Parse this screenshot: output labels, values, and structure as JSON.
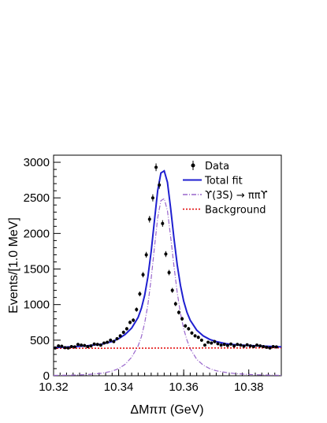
{
  "chart_data": {
    "type": "line",
    "xlabel": "ΔMππ (GeV)",
    "ylabel": "Events/[1.0 MeV]",
    "xlim": [
      10.32,
      10.39
    ],
    "ylim": [
      0,
      3100
    ],
    "x_ticks": [
      "10.32",
      "10.34",
      "10.36",
      "10.38"
    ],
    "y_ticks": [
      "0",
      "500",
      "1000",
      "1500",
      "2000",
      "2500",
      "3000"
    ],
    "legend_position": "top-right",
    "legend": [
      {
        "label": "Data",
        "style": "marker",
        "color": "#000000"
      },
      {
        "label": "Total fit",
        "style": "solid",
        "color": "#1f1fd0"
      },
      {
        "label": "ϒ(3S) → ππϒ",
        "style": "dash-dot",
        "color": "#9966cc"
      },
      {
        "label": "Background",
        "style": "dotted",
        "color": "#e00000"
      }
    ],
    "series": [
      {
        "name": "Data",
        "x": [
          10.3205,
          10.3215,
          10.3225,
          10.3235,
          10.3245,
          10.3255,
          10.3265,
          10.3275,
          10.3285,
          10.3295,
          10.3305,
          10.3315,
          10.3325,
          10.3335,
          10.3345,
          10.3355,
          10.3365,
          10.3375,
          10.3385,
          10.3395,
          10.3405,
          10.3415,
          10.3425,
          10.3435,
          10.3445,
          10.3455,
          10.3465,
          10.3475,
          10.3485,
          10.3495,
          10.3505,
          10.3515,
          10.3525,
          10.3535,
          10.3545,
          10.3555,
          10.3565,
          10.3575,
          10.3585,
          10.3595,
          10.3605,
          10.3615,
          10.3625,
          10.3635,
          10.3645,
          10.3655,
          10.3665,
          10.3675,
          10.3685,
          10.3695,
          10.3705,
          10.3715,
          10.3725,
          10.3735,
          10.3745,
          10.3755,
          10.3765,
          10.3775,
          10.3785,
          10.3795,
          10.3805,
          10.3815,
          10.3825,
          10.3835,
          10.3845,
          10.3855,
          10.3865,
          10.3875,
          10.3885
        ],
        "y": [
          390,
          420,
          415,
          395,
          390,
          410,
          405,
          440,
          430,
          425,
          410,
          420,
          445,
          440,
          430,
          460,
          470,
          500,
          480,
          520,
          560,
          610,
          660,
          750,
          780,
          930,
          1150,
          1420,
          1700,
          2200,
          2500,
          2930,
          2680,
          2140,
          1710,
          1450,
          1200,
          1010,
          890,
          800,
          700,
          660,
          600,
          560,
          540,
          500,
          430,
          470,
          460,
          480,
          450,
          430,
          440,
          425,
          445,
          420,
          440,
          430,
          415,
          435,
          420,
          410,
          430,
          420,
          410,
          400,
          390,
          410,
          405
        ]
      },
      {
        "name": "Total fit",
        "x": [
          10.32,
          10.325,
          10.33,
          10.335,
          10.338,
          10.34,
          10.342,
          10.344,
          10.346,
          10.347,
          10.348,
          10.349,
          10.35,
          10.351,
          10.352,
          10.353,
          10.354,
          10.355,
          10.356,
          10.357,
          10.358,
          10.359,
          10.36,
          10.361,
          10.362,
          10.364,
          10.366,
          10.368,
          10.37,
          10.373,
          10.376,
          10.38,
          10.385,
          10.39
        ],
        "y": [
          395,
          405,
          420,
          445,
          480,
          520,
          580,
          670,
          820,
          950,
          1130,
          1390,
          1750,
          2180,
          2600,
          2850,
          2880,
          2720,
          2350,
          1930,
          1560,
          1270,
          1050,
          890,
          780,
          640,
          560,
          510,
          480,
          450,
          435,
          425,
          415,
          405
        ]
      },
      {
        "name": "ϒ(3S) → ππϒ",
        "x": [
          10.32,
          10.325,
          10.33,
          10.335,
          10.338,
          10.34,
          10.342,
          10.344,
          10.346,
          10.347,
          10.348,
          10.349,
          10.35,
          10.351,
          10.352,
          10.353,
          10.354,
          10.355,
          10.356,
          10.357,
          10.358,
          10.359,
          10.36,
          10.361,
          10.362,
          10.364,
          10.366,
          10.368,
          10.37,
          10.373,
          10.376,
          10.38,
          10.385,
          10.39
        ],
        "y": [
          5,
          8,
          15,
          35,
          65,
          100,
          160,
          260,
          420,
          550,
          740,
          1000,
          1370,
          1800,
          2220,
          2460,
          2490,
          2320,
          1950,
          1540,
          1170,
          880,
          660,
          500,
          380,
          230,
          150,
          100,
          70,
          45,
          30,
          18,
          10,
          6
        ]
      },
      {
        "name": "Background",
        "x": [
          10.32,
          10.39
        ],
        "y": [
          385,
          392
        ]
      }
    ]
  }
}
